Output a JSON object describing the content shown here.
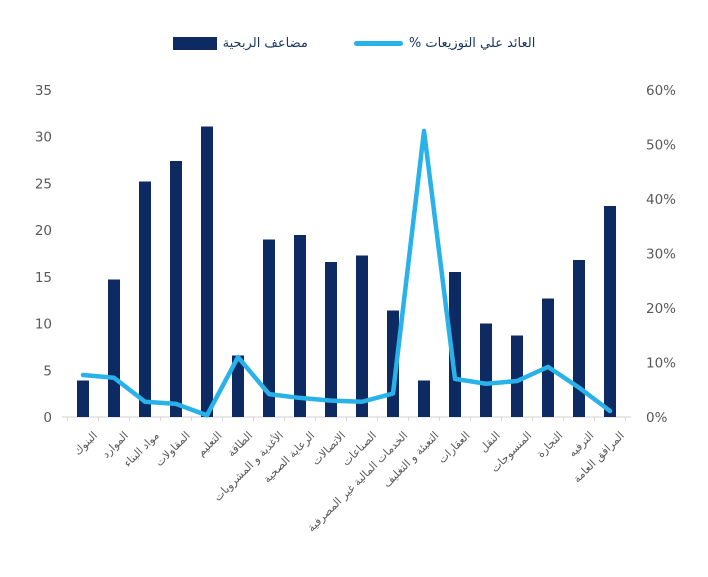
{
  "legend": {
    "bar_label": "مضاعف الربحية",
    "line_label": "العائد علي التوزيعات %"
  },
  "colors": {
    "bar": "#0e2a63",
    "line": "#29b2e9",
    "axis_text": "#595959",
    "xlabel_text": "#595959",
    "baseline": "#d9d9d9",
    "legend_text": "#17375e"
  },
  "chart_data": {
    "type": "bar",
    "subtype": "combo-bar-line-dual-axis",
    "title": "",
    "xlabel": "",
    "ylabel_left": "",
    "ylabel_right": "",
    "grid": false,
    "legend_position": "top",
    "categories": [
      "البنوك",
      "الموارد",
      "مواد البناء",
      "المقاولات",
      "التعليم",
      "الطاقة",
      "الأغذية و المشروبات",
      "الرعاية الصحية",
      "الاتصالات",
      "الصناعات",
      "الخدمات المالية غير المصرفية",
      "التعبئة و التغليف",
      "العقارات",
      "النقل",
      "المنسوجات",
      "التجارة",
      "الترفيه",
      "المرافق العامة"
    ],
    "series": [
      {
        "name": "مضاعف الربحية",
        "type": "bar",
        "axis": "left",
        "values": [
          3.9,
          14.7,
          25.2,
          27.4,
          31.1,
          6.6,
          19.0,
          19.5,
          16.6,
          17.3,
          11.4,
          3.9,
          15.5,
          10.0,
          8.7,
          12.7,
          16.8,
          22.6
        ]
      },
      {
        "name": "العائد علي التوزيعات %",
        "type": "line",
        "axis": "right",
        "unit": "%",
        "values": [
          7.7,
          7.2,
          2.8,
          2.4,
          0.3,
          11.0,
          4.2,
          3.5,
          3.0,
          2.8,
          4.3,
          52.5,
          7.0,
          6.1,
          6.6,
          9.2,
          5.4,
          1.1
        ]
      }
    ],
    "left_axis": {
      "min": 0,
      "max": 35,
      "step": 5,
      "tick_labels": [
        "0",
        "5",
        "10",
        "15",
        "20",
        "25",
        "30",
        "35"
      ]
    },
    "right_axis": {
      "min": 0,
      "max": 60,
      "step": 10,
      "tick_labels": [
        "0%",
        "10%",
        "20%",
        "30%",
        "40%",
        "50%",
        "60%"
      ]
    }
  }
}
